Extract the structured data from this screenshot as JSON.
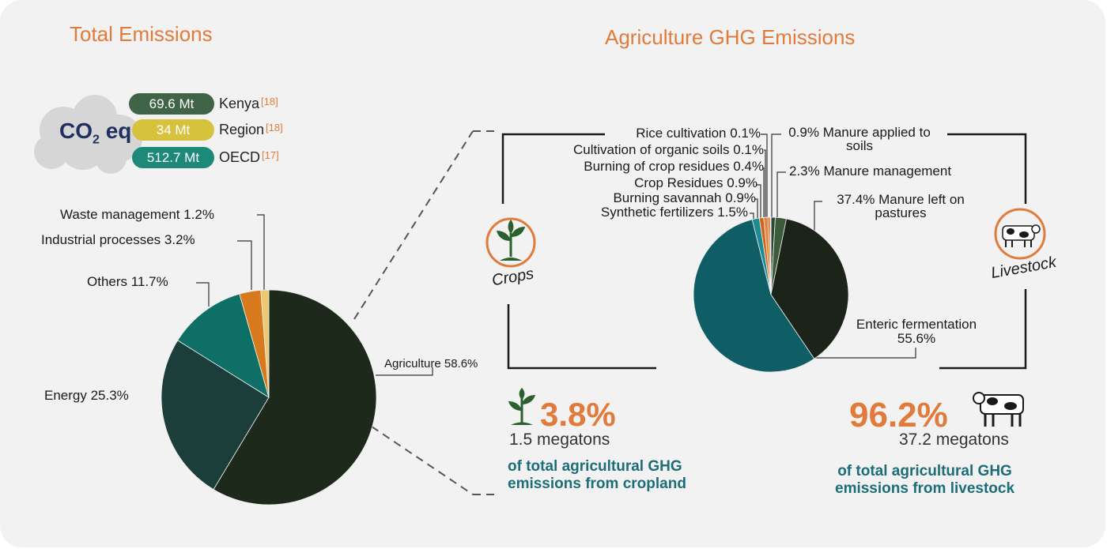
{
  "titles": {
    "total": "Total Emissions",
    "agri": "Agriculture GHG Emissions"
  },
  "co2": {
    "label_main": "CO",
    "label_sub": "2",
    "label_suffix": "eq",
    "entries": [
      {
        "value": "69.6 Mt",
        "name": "Kenya",
        "ref": "[18]",
        "color": "#3f6448"
      },
      {
        "value": "34 Mt",
        "name": "Region",
        "ref": "[18]",
        "color": "#d7c23e"
      },
      {
        "value": "512.7 Mt",
        "name": "OECD",
        "ref": "[17]",
        "color": "#1d8a79"
      }
    ]
  },
  "chart_data": [
    {
      "type": "pie",
      "title": "Total Emissions",
      "slices": [
        {
          "label": "Agriculture",
          "value": 58.6,
          "label_text": "Agriculture 58.6%",
          "color": "#1d2a1b"
        },
        {
          "label": "Energy",
          "value": 25.3,
          "label_text": "Energy 25.3%",
          "color": "#1c3e3b"
        },
        {
          "label": "Others",
          "value": 11.7,
          "label_text": "Others 11.7%",
          "color": "#0e6f66"
        },
        {
          "label": "Industrial processes",
          "value": 3.2,
          "label_text": "Industrial processes 3.2%",
          "color": "#d77a1e"
        },
        {
          "label": "Waste management",
          "value": 1.2,
          "label_text": "Waste management 1.2%",
          "color": "#efc872"
        }
      ]
    },
    {
      "type": "pie",
      "title": "Agriculture GHG Emissions",
      "slices": [
        {
          "label": "Manure applied to soils",
          "value": 0.9,
          "label_text": "0.9% Manure applied to soils",
          "color": "#2f4a33"
        },
        {
          "label": "Manure management",
          "value": 2.3,
          "label_text": "2.3% Manure management",
          "color": "#3b5c3a"
        },
        {
          "label": "Manure left on pastures",
          "value": 37.4,
          "label_text": "37.4% Manure left on pastures",
          "color": "#1c2419"
        },
        {
          "label": "Enteric fermentation",
          "value": 55.6,
          "label_text": "Enteric fermentation 55.6%",
          "color": "#0f5e66"
        },
        {
          "label": "Synthetic fertilizers",
          "value": 1.5,
          "label_text": "Synthetic fertilizers 1.5%",
          "color": "#1e8a91"
        },
        {
          "label": "Burning savannah",
          "value": 0.9,
          "label_text": "Burning savannah 0.9%",
          "color": "#d0621c"
        },
        {
          "label": "Crop Residues",
          "value": 0.9,
          "label_text": "Crop Residues 0.9%",
          "color": "#e7863a"
        },
        {
          "label": "Burning of crop residues",
          "value": 0.4,
          "label_text": "Burning of crop residues 0.4%",
          "color": "#c45818"
        },
        {
          "label": "Cultivation of organic soils",
          "value": 0.1,
          "label_text": "Cultivation of organic soils 0.1%",
          "color": "#e98b3f"
        },
        {
          "label": "Rice cultivation",
          "value": 0.1,
          "label_text": "Rice cultivation 0.1%",
          "color": "#b8531a"
        }
      ]
    }
  ],
  "crops": {
    "icon_label": "Crops",
    "percent": "3.8%",
    "megatons": "1.5 megatons",
    "desc_line1": "of total agricultural GHG",
    "desc_line2": "emissions from cropland"
  },
  "livestock": {
    "icon_label": "Livestock",
    "percent": "96.2%",
    "megatons": "37.2 megatons",
    "desc_line1": "of total agricultural GHG",
    "desc_line2": "emissions from livestock"
  },
  "colors": {
    "accent_orange": "#e07b3c",
    "teal_text": "#1c6d78",
    "icon_green": "#2c5f2e"
  }
}
